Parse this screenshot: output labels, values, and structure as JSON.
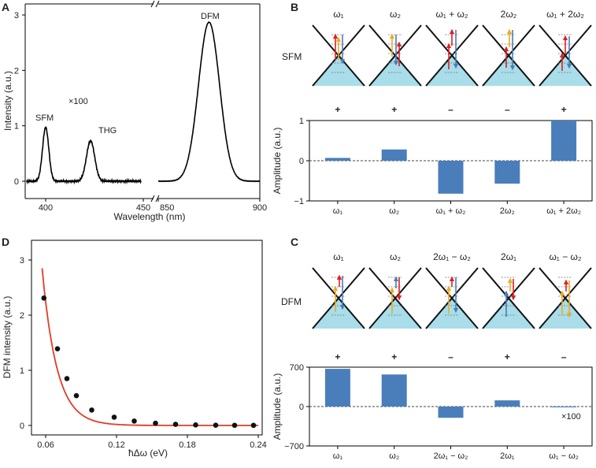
{
  "panels": {
    "a": "A",
    "b": "B",
    "c": "C",
    "d": "D"
  },
  "colors": {
    "bar": "#4a7ebb",
    "fit": "#e03c28",
    "point": "#111111",
    "cone": "#a8dde9",
    "red_arrow": "#e02020",
    "orange_arrow": "#f0a820",
    "blue_arrow": "#4a7ebb"
  },
  "chart_data": [
    {
      "type": "line",
      "panel": "A",
      "title": "",
      "xlabel": "Wavelength (nm)",
      "ylabel": "Intensity (a.u.)",
      "left_segment": {
        "xlim": [
          390,
          455
        ],
        "xticks": [
          "400",
          "450"
        ]
      },
      "right_segment": {
        "xlim": [
          850,
          900
        ],
        "xticks": [
          "850",
          "900"
        ]
      },
      "ylim": [
        0,
        3.3
      ],
      "yticks": [
        "0",
        "1",
        "2",
        "3"
      ],
      "scale_note": "×100",
      "annotations": [
        "SFM",
        "THG",
        "DFM"
      ],
      "series": [
        {
          "name": "SFM",
          "peak_x": 400,
          "peak_y": 0.97
        },
        {
          "name": "THG",
          "peak_x": 423,
          "peak_y": 0.73
        },
        {
          "name": "DFM",
          "peak_x": 875,
          "peak_y": 2.87
        }
      ]
    },
    {
      "type": "bar",
      "panel": "B",
      "row_label": "SFM",
      "categories": [
        "ω₁",
        "ω₂",
        "ω₁ + ω₂",
        "2ω₂",
        "ω₁ + 2ω₂"
      ],
      "signs": [
        "+",
        "+",
        "–",
        "–",
        "+"
      ],
      "values": [
        0.07,
        0.28,
        -0.82,
        -0.57,
        1.0
      ],
      "ylabel": "Amplitude (a.u.)",
      "ylim": [
        -1,
        1
      ],
      "yticks": [
        "1",
        "0",
        "−1"
      ]
    },
    {
      "type": "bar",
      "panel": "C",
      "row_label": "DFM",
      "categories": [
        "ω₁",
        "ω₂",
        "2ω₁ − ω₂",
        "2ω₁",
        "ω₁ − ω₂"
      ],
      "signs": [
        "+",
        "+",
        "–",
        "+",
        "–"
      ],
      "values": [
        670,
        570,
        -200,
        110,
        -10
      ],
      "ylabel": "Amplitude (a.u.)",
      "ylim": [
        -700,
        700
      ],
      "yticks": [
        "700",
        "0",
        "−700"
      ],
      "note": "×100"
    },
    {
      "type": "scatter",
      "panel": "D",
      "xlabel": "ħΔω (eV)",
      "ylabel": "DFM intensity (a.u.)",
      "xlim": [
        0.04,
        0.24
      ],
      "ylim": [
        -0.1,
        3.3
      ],
      "xticks": [
        "0.06",
        "0.12",
        "0.18",
        "0.24"
      ],
      "yticks": [
        "0",
        "1",
        "2",
        "3"
      ],
      "x": [
        0.0585,
        0.07,
        0.078,
        0.086,
        0.099,
        0.118,
        0.135,
        0.153,
        0.17,
        0.187,
        0.204,
        0.22,
        0.236
      ],
      "y": [
        2.31,
        1.39,
        0.85,
        0.54,
        0.28,
        0.15,
        0.08,
        0.04,
        0.02,
        0.01,
        0.005,
        0.003,
        0.002
      ],
      "fit": {
        "x_start": 0.057,
        "x_end": 0.24,
        "amplitude": 2.85,
        "decay": 0.0125
      }
    }
  ]
}
